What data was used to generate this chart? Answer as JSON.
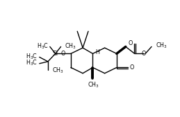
{
  "bg_color": "#ffffff",
  "line_color": "#000000",
  "lw": 1.0,
  "fs": 5.8,
  "xlim": [
    -1.5,
    12.5
  ],
  "ylim": [
    1.2,
    8.8
  ],
  "figsize": [
    2.59,
    1.69
  ],
  "dpi": 100
}
